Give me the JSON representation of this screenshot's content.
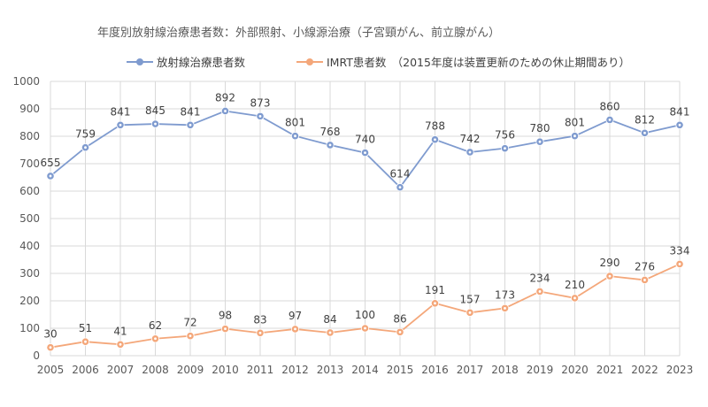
{
  "chart_data": {
    "type": "line",
    "title": "年度別放射線治療患者数：外部照射、小線源治療（子宮頸がん、前立腺がん）",
    "xlabel": "",
    "ylabel": "",
    "categories": [
      "2005",
      "2006",
      "2007",
      "2008",
      "2009",
      "2010",
      "2011",
      "2012",
      "2013",
      "2014",
      "2015",
      "2016",
      "2017",
      "2018",
      "2019",
      "2020",
      "2021",
      "2022",
      "2023"
    ],
    "ylim": [
      0,
      1000
    ],
    "yticks": [
      0,
      100,
      200,
      300,
      400,
      500,
      600,
      700,
      800,
      900,
      1000
    ],
    "grid": true,
    "legend_position": "top",
    "series": [
      {
        "name": "放射線治療患者数",
        "color": "#7F9BCF",
        "values": [
          655,
          759,
          841,
          845,
          841,
          892,
          873,
          801,
          768,
          740,
          614,
          788,
          742,
          756,
          780,
          801,
          860,
          812,
          841
        ]
      },
      {
        "name": "IMRT患者数　（2015年度は装置更新のための休止期間あり）",
        "color": "#F4A77A",
        "values": [
          30,
          51,
          41,
          62,
          72,
          98,
          83,
          97,
          84,
          100,
          86,
          191,
          157,
          173,
          234,
          210,
          290,
          276,
          334
        ]
      }
    ]
  }
}
